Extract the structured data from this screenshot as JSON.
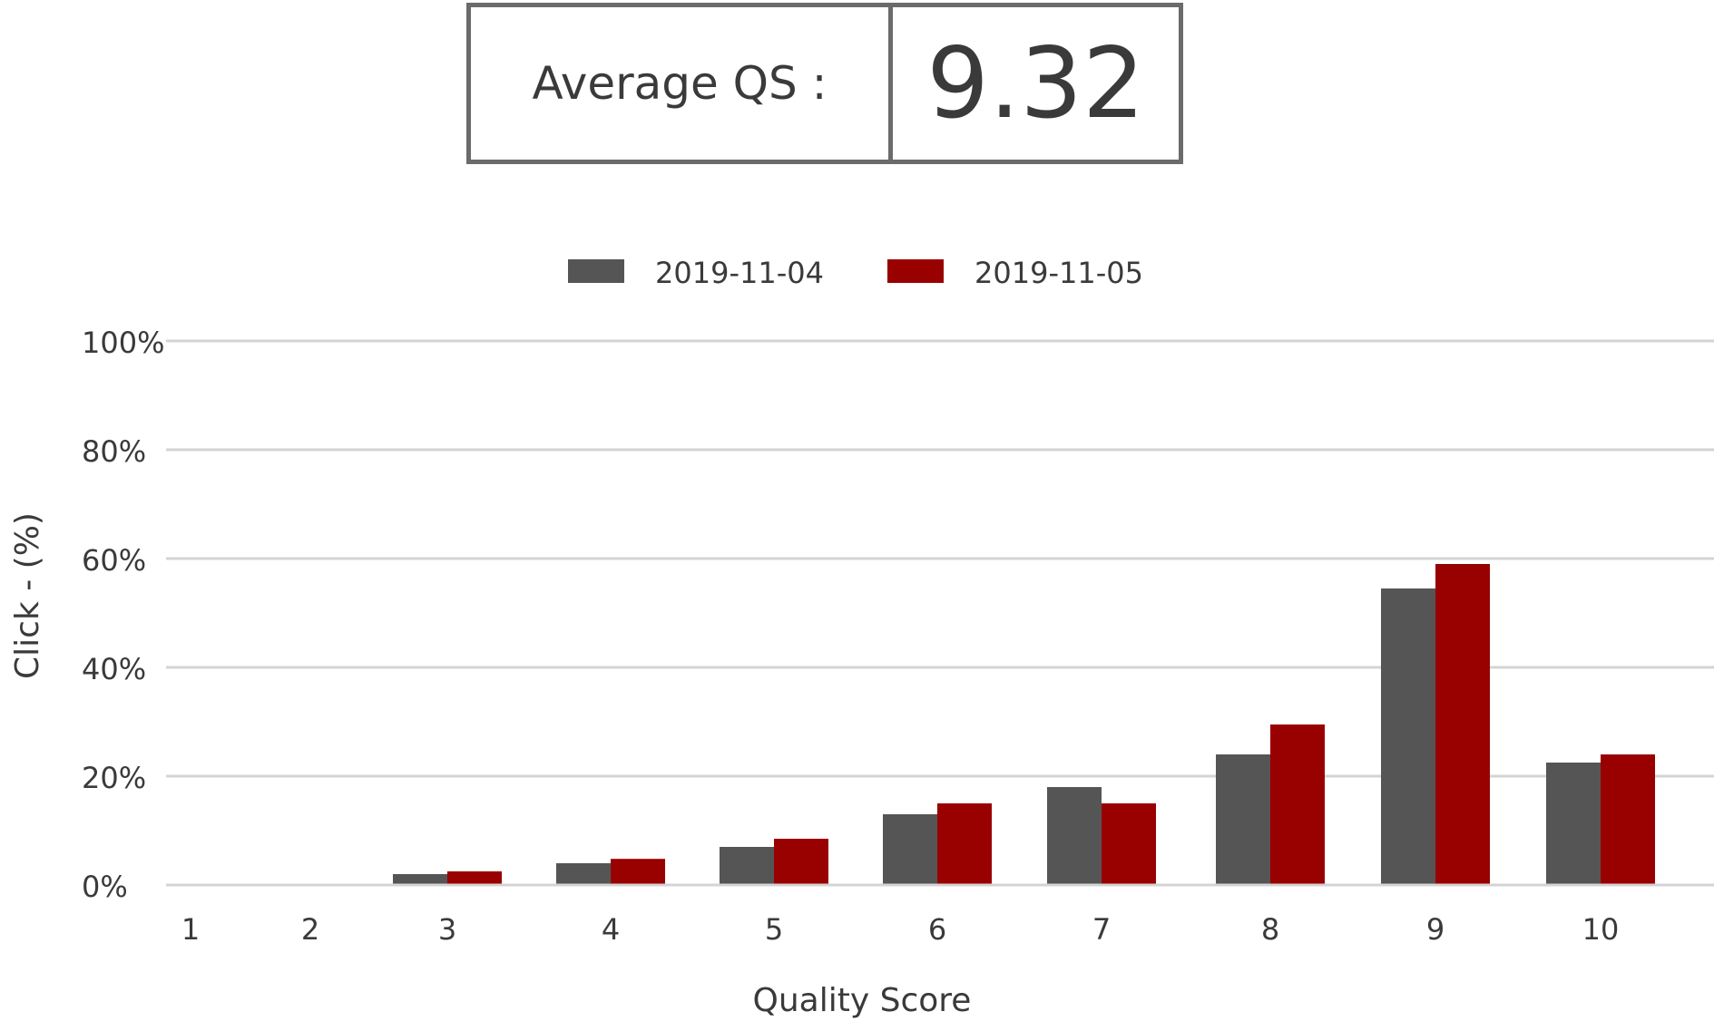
{
  "summary": {
    "label": "Average QS :",
    "value": "9.32"
  },
  "chart_data": {
    "type": "bar",
    "title": "",
    "xlabel": "Quality Score",
    "ylabel": "Click - (%)",
    "categories": [
      "1",
      "2",
      "3",
      "4",
      "5",
      "6",
      "7",
      "8",
      "9",
      "10"
    ],
    "series": [
      {
        "name": "2019-11-04",
        "color": "#555555",
        "values": [
          0,
          0,
          2,
          4,
          7,
          13,
          18,
          24,
          54.5,
          22.5
        ]
      },
      {
        "name": "2019-11-05",
        "color": "#990000",
        "values": [
          0,
          0,
          2.5,
          4.8,
          8.5,
          15,
          15,
          29.5,
          59,
          24
        ]
      }
    ],
    "ylim": [
      0,
      100
    ],
    "yticks": [
      "0%",
      "20%",
      "40%",
      "60%",
      "80%",
      "100%"
    ],
    "grid": true,
    "legend": "top-center"
  }
}
